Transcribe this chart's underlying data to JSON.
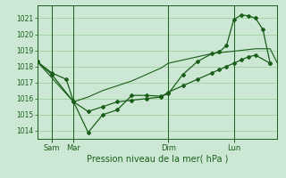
{
  "background_color": "#cce8d4",
  "plot_bg_color": "#cce8d4",
  "grid_color": "#99cc99",
  "line_color": "#1a5e1a",
  "title": "Pression niveau de la mer( hPa )",
  "ylim": [
    1013.5,
    1021.8
  ],
  "yticks": [
    1014,
    1015,
    1016,
    1017,
    1018,
    1019,
    1020,
    1021
  ],
  "xlim": [
    0,
    132
  ],
  "xtick_positions": [
    8,
    20,
    72,
    108
  ],
  "xtick_labels": [
    "Sam",
    "Mar",
    "Dim",
    "Lun"
  ],
  "vline_positions": [
    8,
    20,
    72,
    108
  ],
  "series1_nomarker": {
    "x": [
      0,
      4,
      8,
      12,
      16,
      20,
      28,
      36,
      44,
      52,
      60,
      68,
      72,
      80,
      88,
      96,
      100,
      104,
      108,
      112,
      116,
      120,
      124,
      128,
      132
    ],
    "y": [
      1018.3,
      1017.8,
      1017.3,
      1016.8,
      1016.3,
      1015.8,
      1016.1,
      1016.5,
      1016.8,
      1017.1,
      1017.5,
      1017.9,
      1018.2,
      1018.4,
      1018.6,
      1018.8,
      1018.85,
      1018.9,
      1018.95,
      1019.0,
      1019.05,
      1019.1,
      1019.1,
      1019.1,
      1018.2
    ]
  },
  "series2_markers": {
    "x": [
      0,
      8,
      20,
      28,
      36,
      44,
      52,
      60,
      68,
      72,
      80,
      88,
      96,
      100,
      104,
      108,
      112,
      116,
      120,
      124,
      128
    ],
    "y": [
      1018.3,
      1017.5,
      1015.8,
      1013.9,
      1015.0,
      1015.3,
      1016.2,
      1016.2,
      1016.15,
      1016.3,
      1017.5,
      1018.3,
      1018.8,
      1018.9,
      1019.3,
      1020.9,
      1021.2,
      1021.15,
      1021.0,
      1020.3,
      1018.2
    ]
  },
  "series3_markers": {
    "x": [
      0,
      8,
      16,
      20,
      28,
      36,
      44,
      52,
      60,
      68,
      72,
      80,
      88,
      96,
      100,
      104,
      108,
      112,
      116,
      120,
      128
    ],
    "y": [
      1018.3,
      1017.6,
      1017.2,
      1015.8,
      1015.2,
      1015.5,
      1015.8,
      1015.9,
      1016.0,
      1016.1,
      1016.4,
      1016.8,
      1017.2,
      1017.6,
      1017.8,
      1018.0,
      1018.2,
      1018.4,
      1018.6,
      1018.7,
      1018.2
    ]
  }
}
